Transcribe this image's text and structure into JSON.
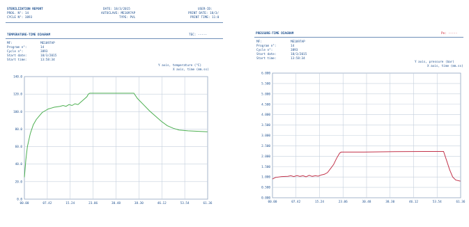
{
  "header": {
    "report_title": "STERILIZATION REPORT",
    "prog_line": "PROG. N°: 14",
    "cycle_line": "CYCLE N°: 3893",
    "date_line": "DATE: 18/3/2015",
    "autoclave_line": "AUTOCLAVE: ME1097AP",
    "type_line": "TYPE: PVL",
    "user_line": "USER-ID:",
    "print_date_line": "PRINT DATE: 18/3/",
    "print_time_line": "PRINT TIME: 11:0"
  },
  "temp_panel": {
    "title": "TEMPERATURE-TIME DIAGRAM",
    "tec": "TEC: -----",
    "info_labels": [
      "MF:",
      "Program n°:",
      "Cycle n°:",
      "Start date:",
      "Start time:"
    ],
    "info_values": [
      "ME1097AP",
      "14",
      "3893",
      "18/3/2015",
      "13:58:34"
    ],
    "y_axis_caption": "Y axis, temperature (°C)",
    "x_axis_caption": "X axis, time (mm.ss)"
  },
  "pressure_panel": {
    "title": "PRESSURE-TIME DIAGRAM",
    "pe": "Pe: -----",
    "info_labels": [
      "MF:",
      "Program n°:",
      "Cycle n°:",
      "Start date:",
      "Start time:"
    ],
    "info_values": [
      "ME1097AP",
      "14",
      "3893",
      "18/3/2015",
      "13:58:34"
    ],
    "y_axis_caption": "Y axis, pressure (bar)",
    "x_axis_caption": "X axis, time (mm.ss)"
  },
  "colors": {
    "temperature_line": "#4caf50",
    "pressure_line": "#c2334a",
    "grid": "#c4cfdc",
    "text": "#1d4f8e"
  },
  "chart_data": [
    {
      "type": "line",
      "title": "TEMPERATURE-TIME DIAGRAM",
      "xlabel": "X axis, time (mm.ss)",
      "ylabel": "Y axis, temperature (°C)",
      "x_ticks": [
        "00.00",
        "07.42",
        "15.24",
        "23.06",
        "30.48",
        "38.30",
        "46.12",
        "53.54",
        "61.36"
      ],
      "y_ticks": [
        "0.0",
        "20.0",
        "40.0",
        "60.0",
        "80.0",
        "100.0",
        "120.0",
        "140.0"
      ],
      "xlim": [
        0,
        61.6
      ],
      "ylim": [
        0,
        140
      ],
      "grid": true,
      "series": [
        {
          "points": [
            [
              0,
              25
            ],
            [
              0.5,
              45
            ],
            [
              1,
              60
            ],
            [
              2,
              75
            ],
            [
              3,
              85
            ],
            [
              4,
              91
            ],
            [
              5,
              95
            ],
            [
              6,
              99
            ],
            [
              7,
              101
            ],
            [
              8,
              103
            ],
            [
              9,
              104
            ],
            [
              10,
              105
            ],
            [
              12,
              106
            ],
            [
              13,
              107
            ],
            [
              14,
              106
            ],
            [
              15,
              108
            ],
            [
              16,
              107
            ],
            [
              17,
              109
            ],
            [
              18,
              108
            ],
            [
              19,
              111
            ],
            [
              20,
              114
            ],
            [
              21,
              117
            ],
            [
              21.5,
              120
            ],
            [
              22,
              121
            ],
            [
              36.8,
              121
            ],
            [
              38,
              115
            ],
            [
              40,
              108
            ],
            [
              42,
              101
            ],
            [
              44,
              95
            ],
            [
              46,
              89
            ],
            [
              48,
              84
            ],
            [
              50,
              81
            ],
            [
              52,
              79
            ],
            [
              55,
              78
            ],
            [
              61.5,
              77
            ]
          ]
        }
      ]
    },
    {
      "type": "line",
      "title": "PRESSURE-TIME DIAGRAM",
      "xlabel": "X axis, time (mm.ss)",
      "ylabel": "Y axis, pressure (bar)",
      "x_ticks": [
        "00.00",
        "07.42",
        "15.24",
        "23.06",
        "30.48",
        "38.30",
        "46.12",
        "53.54",
        "61.36"
      ],
      "y_ticks": [
        "0.000",
        "0.500",
        "1.000",
        "1.500",
        "2.000",
        "2.500",
        "3.000",
        "3.500",
        "4.000",
        "4.500",
        "5.000",
        "5.500",
        "6.000"
      ],
      "xlim": [
        0,
        61.6
      ],
      "ylim": [
        0,
        6
      ],
      "grid": true,
      "series": [
        {
          "points": [
            [
              0,
              0.9
            ],
            [
              1,
              0.98
            ],
            [
              3,
              1.02
            ],
            [
              5,
              1.03
            ],
            [
              6,
              1.06
            ],
            [
              7,
              1.02
            ],
            [
              8,
              1.07
            ],
            [
              9,
              1.03
            ],
            [
              10,
              1.06
            ],
            [
              11,
              1.01
            ],
            [
              12,
              1.08
            ],
            [
              13,
              1.03
            ],
            [
              14,
              1.06
            ],
            [
              15,
              1.04
            ],
            [
              16,
              1.1
            ],
            [
              17,
              1.13
            ],
            [
              18,
              1.21
            ],
            [
              19,
              1.4
            ],
            [
              20,
              1.6
            ],
            [
              21,
              1.9
            ],
            [
              22,
              2.15
            ],
            [
              22.5,
              2.2
            ],
            [
              30,
              2.2
            ],
            [
              40,
              2.22
            ],
            [
              50,
              2.23
            ],
            [
              56,
              2.23
            ],
            [
              57,
              1.8
            ],
            [
              58,
              1.35
            ],
            [
              59,
              1.0
            ],
            [
              60,
              0.85
            ],
            [
              61.5,
              0.8
            ]
          ]
        }
      ]
    }
  ]
}
